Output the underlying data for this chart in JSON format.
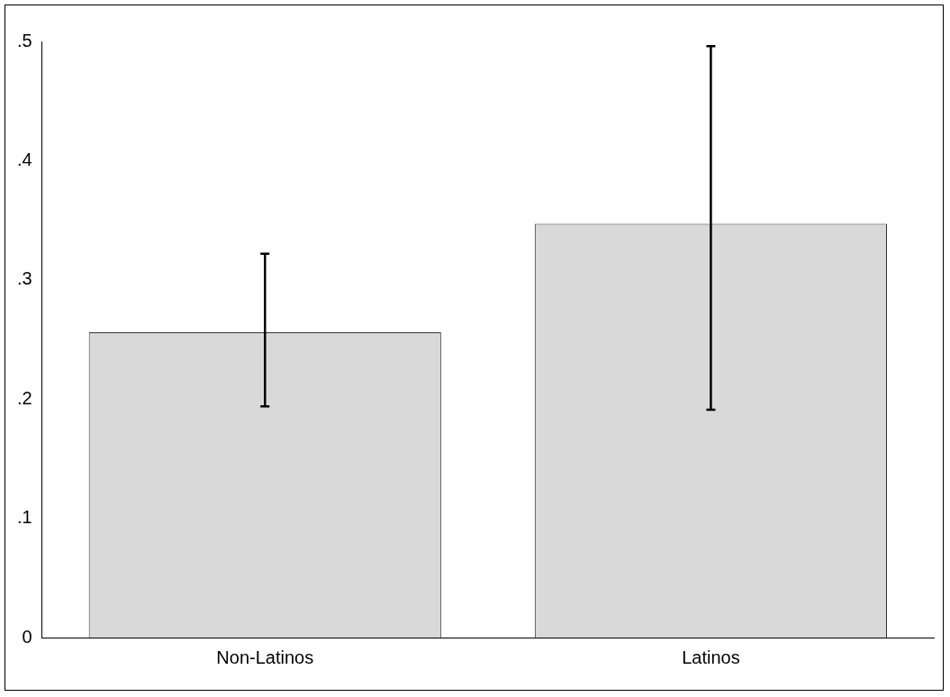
{
  "chart_data": {
    "type": "bar",
    "categories": [
      "Non-Latinos",
      "Latinos"
    ],
    "values": [
      0.256,
      0.347
    ],
    "errors": [
      [
        0.194,
        0.322
      ],
      [
        0.191,
        0.496
      ]
    ],
    "color": "#d9d9d9",
    "ylim": [
      0,
      0.5
    ],
    "yticks": [
      {
        "value": 0,
        "label": "0"
      },
      {
        "value": 0.1,
        "label": ".1"
      },
      {
        "value": 0.2,
        "label": ".2"
      },
      {
        "value": 0.3,
        "label": ".3"
      },
      {
        "value": 0.4,
        "label": ".4"
      },
      {
        "value": 0.5,
        "label": ".5"
      }
    ],
    "grid": false,
    "legend": false
  }
}
